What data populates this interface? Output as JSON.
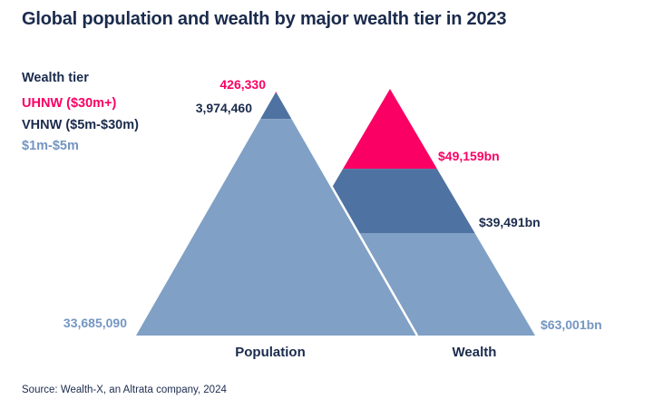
{
  "title": "Global population and wealth by major wealth tier in 2023",
  "legend": {
    "heading": "Wealth tier"
  },
  "source": "Source: Wealth-X, an Altrata company, 2024",
  "colors": {
    "navy_text": "#1B2B4D",
    "pink": "#FA0064",
    "dark_band": "#4E72A1",
    "light_band": "#80A0C5",
    "slate_text": "#7496C2",
    "background": "#FFFFFF",
    "divider_stroke": "#FFFFFF"
  },
  "chart_data": {
    "type": "pyramid",
    "title": "Global population and wealth by major wealth tier in 2023",
    "x_labels": [
      "Population",
      "Wealth"
    ],
    "legend_position": "top-left",
    "grid": false,
    "tiers": [
      {
        "name": "UHNW ($30m+)",
        "band_color": "#FA0064",
        "label_color": "#FA0064",
        "population": 426330,
        "population_label": "426,330",
        "wealth_bn": 49159,
        "wealth_label": "$49,159bn"
      },
      {
        "name": "VHNW ($5m-$30m)",
        "band_color": "#4E72A1",
        "label_color": "#1B2B4D",
        "population": 3974460,
        "population_label": "3,974,460",
        "wealth_bn": 39491,
        "wealth_label": "$39,491bn"
      },
      {
        "name": "$1m-$5m",
        "band_color": "#80A0C5",
        "label_color": "#7496C2",
        "population": 33685090,
        "population_label": "33,685,090",
        "wealth_bn": 63001,
        "wealth_label": "$63,001bn"
      }
    ]
  }
}
